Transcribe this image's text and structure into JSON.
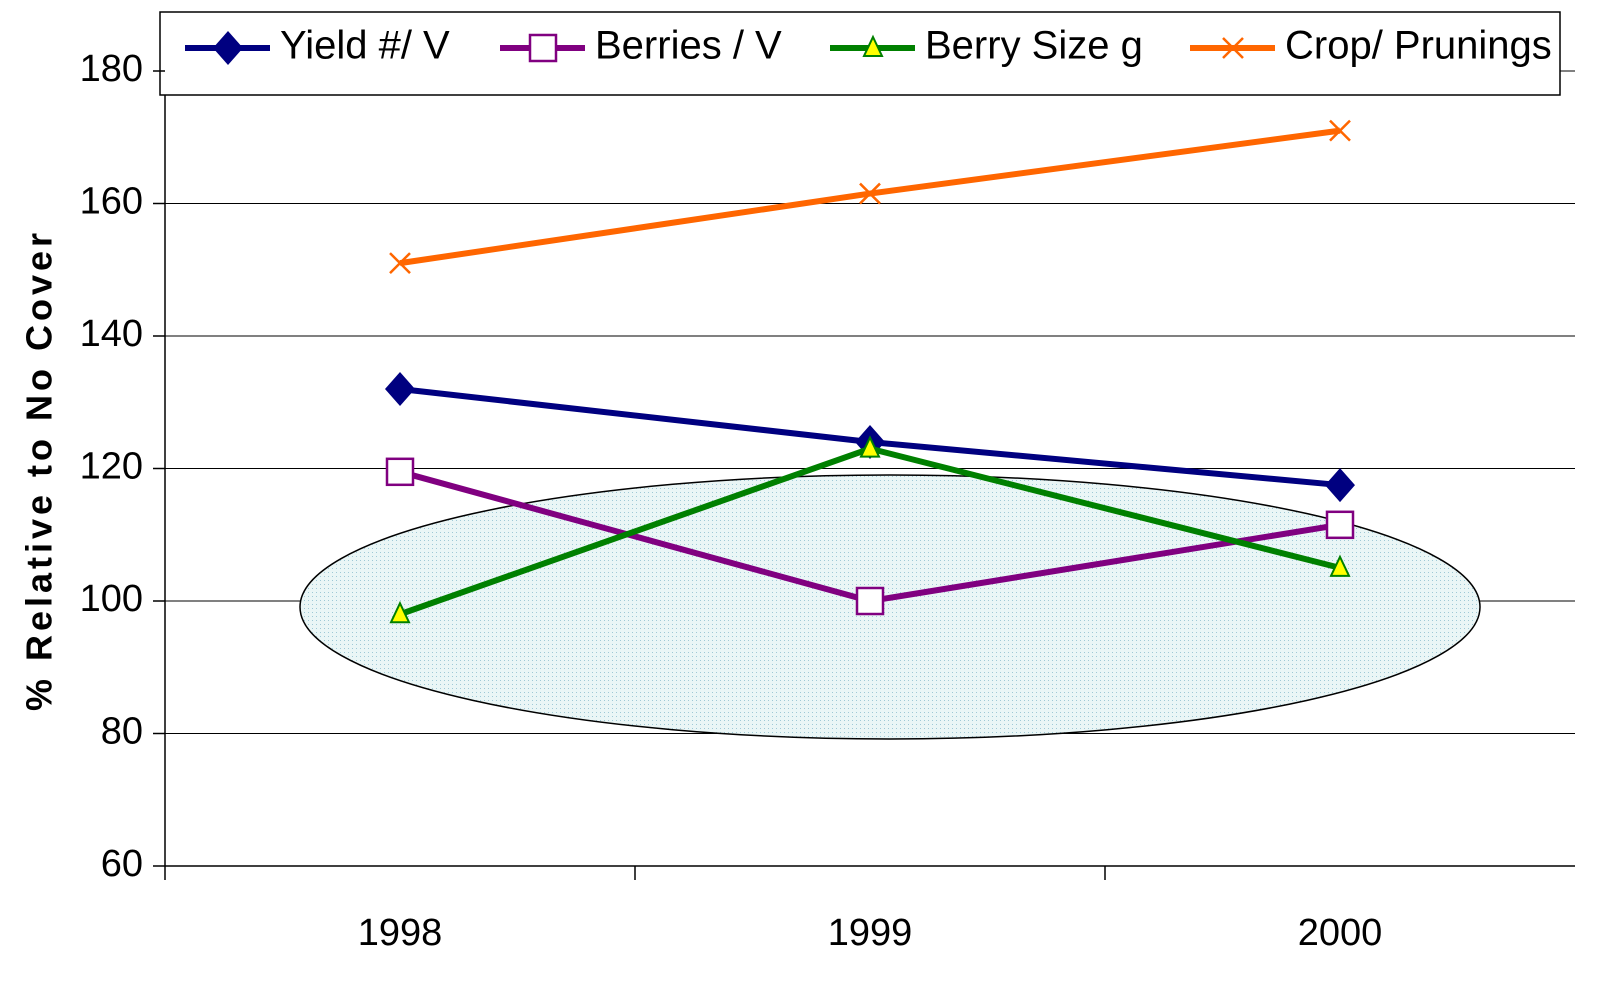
{
  "chart_data": {
    "type": "line",
    "y_label": "% Relative to No Cover",
    "categories": [
      "1998",
      "1999",
      "2000"
    ],
    "series": [
      {
        "name": "Yield #/ V",
        "color": "#000080",
        "marker": "diamond",
        "values": [
          132,
          124,
          117.5
        ]
      },
      {
        "name": "Berries / V",
        "color": "#800080",
        "marker": "square",
        "values": [
          119.5,
          100,
          111.5
        ]
      },
      {
        "name": "Berry Size g",
        "color": "#008000",
        "marker": "triangle",
        "values": [
          98,
          123,
          105
        ]
      },
      {
        "name": "Crop/ Prunings",
        "color": "#ff6600",
        "marker": "x",
        "values": [
          151,
          161.5,
          171
        ]
      }
    ],
    "ylim": [
      60,
      180
    ],
    "yticks": [
      60,
      80,
      100,
      120,
      140,
      160,
      180
    ],
    "grid": true,
    "legend": "top"
  }
}
